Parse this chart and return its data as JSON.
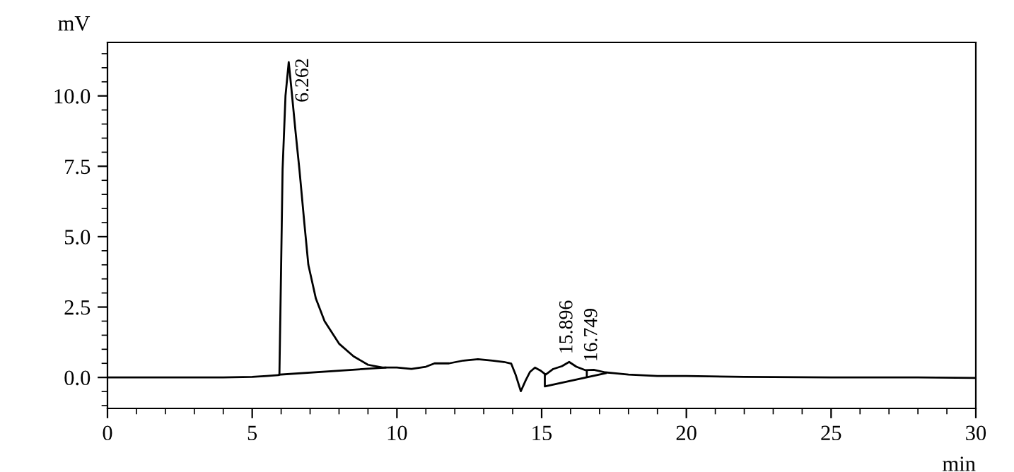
{
  "chart_data": {
    "type": "line",
    "xlabel": "min",
    "ylabel": "mV",
    "xlim": [
      0,
      30
    ],
    "ylim": [
      -1.1,
      11.9
    ],
    "xticks": [
      0,
      5,
      10,
      15,
      20,
      25,
      30
    ],
    "yticks": [
      {
        "value": 0,
        "label": "0.0"
      },
      {
        "value": 2.5,
        "label": "2.5"
      },
      {
        "value": 5,
        "label": "5.0"
      },
      {
        "value": 7.5,
        "label": "7.5"
      },
      {
        "value": 10,
        "label": "10.0"
      }
    ],
    "grid": false,
    "legend": false,
    "marker": "none",
    "line_style": "solid",
    "series": [
      {
        "color": "#000000",
        "x": [
          0,
          2,
          4,
          5,
          5.5,
          5.9,
          5.94,
          6.0,
          6.05,
          6.15,
          6.262,
          6.35,
          6.5,
          6.63,
          6.8,
          6.94,
          7.2,
          7.5,
          8.0,
          8.5,
          9.0,
          9.5,
          10.0,
          10.5,
          11.0,
          11.3,
          11.8,
          12.3,
          12.8,
          13.3,
          13.7,
          13.95,
          14.1,
          14.28,
          14.45,
          14.6,
          14.77,
          14.95,
          15.14,
          15.4,
          15.7,
          15.95,
          16.2,
          16.5,
          16.8,
          17.2,
          17.5,
          18,
          19,
          20,
          22,
          25,
          28,
          30
        ],
        "values": [
          0,
          0,
          0,
          0.02,
          0.05,
          0.08,
          0.1,
          4.0,
          7.4,
          10.0,
          11.2,
          10.3,
          8.7,
          7.4,
          5.5,
          4.0,
          2.8,
          2.0,
          1.2,
          0.75,
          0.45,
          0.35,
          0.35,
          0.3,
          0.38,
          0.5,
          0.5,
          0.6,
          0.65,
          0.6,
          0.55,
          0.49,
          0.1,
          -0.49,
          -0.1,
          0.2,
          0.35,
          0.25,
          0.1,
          0.3,
          0.4,
          0.55,
          0.38,
          0.26,
          0.27,
          0.18,
          0.15,
          0.1,
          0.05,
          0.05,
          0.02,
          0,
          0,
          -0.02
        ]
      },
      {
        "color": "#000000",
        "x": [
          5.94,
          9.6
        ],
        "values": [
          0.1,
          0.35
        ]
      },
      {
        "color": "#000000",
        "x": [
          15.11,
          15.11,
          17.21
        ],
        "values": [
          0.12,
          -0.32,
          0.15
        ]
      },
      {
        "color": "#000000",
        "x": [
          16.56,
          16.56
        ],
        "values": [
          0.24,
          0.02
        ]
      }
    ],
    "annotations": [
      {
        "text": "6.262",
        "x": 6.262,
        "y": 11.2
      },
      {
        "text": "15.896",
        "x": 15.896,
        "y": 0.55
      },
      {
        "text": "16.749",
        "x": 16.749,
        "y": 0.27
      }
    ]
  }
}
